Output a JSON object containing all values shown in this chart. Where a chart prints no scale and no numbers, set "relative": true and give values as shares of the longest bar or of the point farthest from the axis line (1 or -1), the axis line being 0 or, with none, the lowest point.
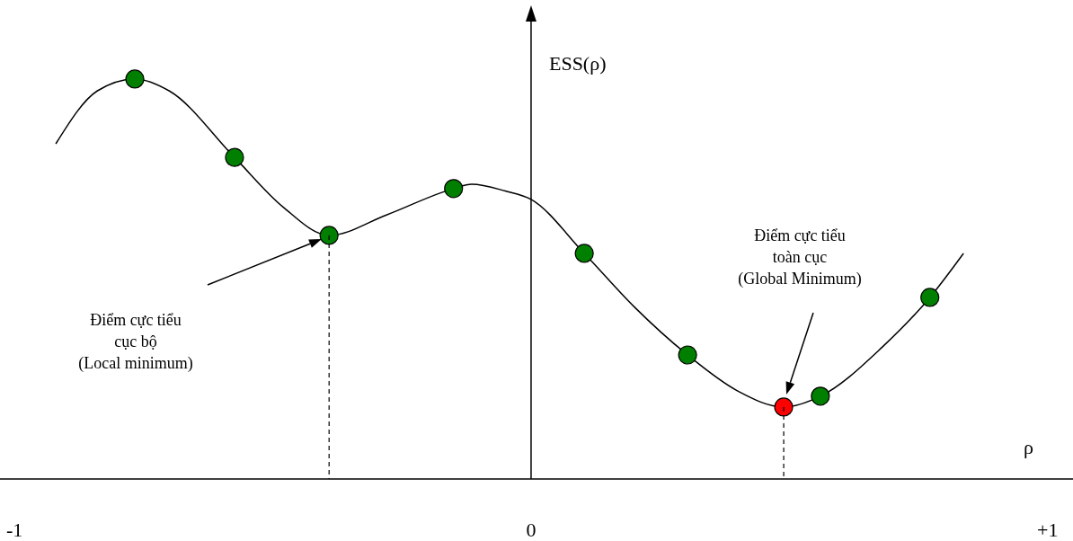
{
  "chart_data": {
    "type": "line",
    "relative": true,
    "xlabel": "ρ",
    "ylabel": "ESS(ρ)",
    "xlim": [
      -1.028,
      1.049
    ],
    "xticks": [
      {
        "value": -1,
        "label": "-1"
      },
      0,
      {
        "value": 1,
        "label": "+1"
      }
    ],
    "series": [
      {
        "color": "#000000",
        "marker": "none",
        "x": [
          -0.92,
          -0.84,
          -0.767,
          -0.7,
          -0.574,
          -0.48,
          -0.391,
          -0.28,
          -0.15,
          -0.115,
          -0.05,
          0,
          0.103,
          0.2,
          0.303,
          0.4,
          0.489,
          0.56,
          0.68,
          0.772,
          0.837
        ],
        "values": [
          0.838,
          0.97,
          1.0,
          0.97,
          0.804,
          0.68,
          0.609,
          0.66,
          0.726,
          0.737,
          0.72,
          0.699,
          0.564,
          0.43,
          0.31,
          0.22,
          0.18,
          0.207,
          0.33,
          0.454,
          0.564
        ]
      },
      {
        "type": "scatter",
        "color": "#007f00",
        "marker": "circle",
        "x": [
          -0.767,
          -0.574,
          -0.391,
          -0.15,
          0.103,
          0.303,
          0.56,
          0.772
        ],
        "values": [
          1.0,
          0.804,
          0.609,
          0.726,
          0.564,
          0.31,
          0.207,
          0.454
        ]
      },
      {
        "type": "scatter",
        "color": "#ff0000",
        "marker": "circle",
        "x": [
          0.489
        ],
        "values": [
          0.18
        ]
      }
    ],
    "ref_lines": [
      {
        "axis": "x",
        "value": -0.391,
        "line_style": "dashed",
        "color": "#000000"
      },
      {
        "axis": "x",
        "value": 0.489,
        "line_style": "dashed",
        "color": "#000000"
      }
    ],
    "annotations": [
      "Điểm cực tiểu\ncục bộ\n(Local minimum)",
      "Điểm cực tiểu\ntoàn cục\n(Global Minimum)"
    ]
  }
}
